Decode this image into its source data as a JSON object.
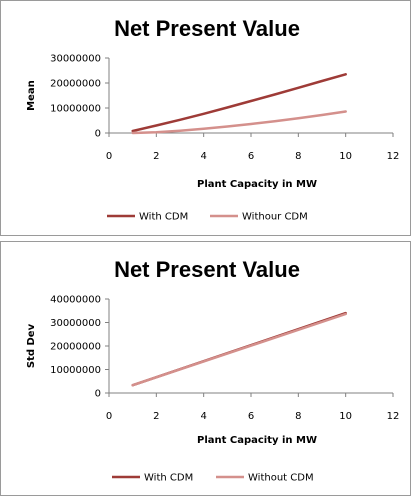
{
  "chart_data": [
    {
      "type": "line",
      "title": "Net Present Value",
      "xlabel": "Plant Capacity in MW",
      "ylabel": "Mean",
      "xlim": [
        0,
        12
      ],
      "ylim": [
        0,
        30000000
      ],
      "xticks": [
        0,
        2,
        4,
        6,
        8,
        10,
        12
      ],
      "yticks": [
        0,
        10000000,
        20000000,
        30000000
      ],
      "xtick_labels": [
        "0",
        "2",
        "4",
        "6",
        "8",
        "10",
        "12"
      ],
      "ytick_labels": [
        "0",
        "10000000",
        "20000000",
        "30000000"
      ],
      "grid": false,
      "legend_position": "bottom",
      "series": [
        {
          "name": "With CDM",
          "color": "#9e3b37",
          "x": [
            1,
            2,
            3,
            4,
            5,
            6,
            7,
            8,
            9,
            10
          ],
          "y": [
            800000,
            3000000,
            5300000,
            7700000,
            10200000,
            12800000,
            15400000,
            18100000,
            20800000,
            23500000
          ]
        },
        {
          "name": "Withour CDM",
          "color": "#d4908c",
          "x": [
            1,
            2,
            3,
            4,
            5,
            6,
            7,
            8,
            9,
            10
          ],
          "y": [
            0,
            300000,
            900000,
            1700000,
            2600000,
            3600000,
            4700000,
            5900000,
            7200000,
            8600000
          ]
        }
      ]
    },
    {
      "type": "line",
      "title": "Net Present Value",
      "xlabel": "Plant Capacity in MW",
      "ylabel": "Std Dev",
      "xlim": [
        0,
        12
      ],
      "ylim": [
        0,
        40000000
      ],
      "xticks": [
        0,
        2,
        4,
        6,
        8,
        10,
        12
      ],
      "yticks": [
        0,
        10000000,
        20000000,
        30000000,
        40000000
      ],
      "xtick_labels": [
        "0",
        "2",
        "4",
        "6",
        "8",
        "10",
        "12"
      ],
      "ytick_labels": [
        "0",
        "10000000",
        "20000000",
        "30000000",
        "40000000"
      ],
      "grid": false,
      "legend_position": "bottom",
      "series": [
        {
          "name": "With CDM",
          "color": "#9e3b37",
          "x": [
            1,
            10
          ],
          "y": [
            3300000,
            34000000
          ]
        },
        {
          "name": "Without CDM",
          "color": "#d4908c",
          "x": [
            1,
            10
          ],
          "y": [
            3300000,
            33600000
          ]
        }
      ]
    }
  ]
}
